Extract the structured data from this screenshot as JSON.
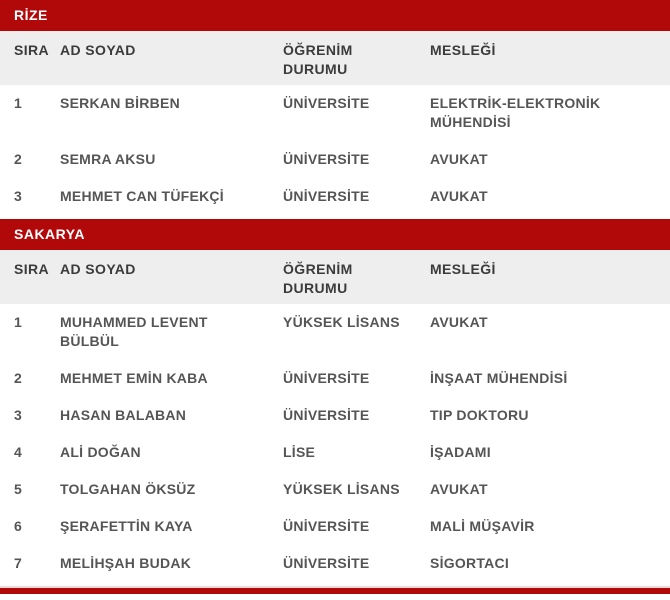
{
  "colors": {
    "accent_red": "#b10909",
    "header_row_bg": "#eeeeee",
    "header_text": "#3b3b3b",
    "row_text": "#555555",
    "bar_text": "#ffffff"
  },
  "columns": [
    "SIRA",
    "AD SOYAD",
    "ÖĞRENİM DURUMU",
    "MESLEĞİ"
  ],
  "sections": [
    {
      "title": "RİZE",
      "rows": [
        {
          "sira": "1",
          "ad_soyad": "SERKAN BİRBEN",
          "ogrenim": "ÜNİVERSİTE",
          "meslek": "ELEKTRİK-ELEKTRONİK MÜHENDİSİ"
        },
        {
          "sira": "2",
          "ad_soyad": "SEMRA AKSU",
          "ogrenim": "ÜNİVERSİTE",
          "meslek": "AVUKAT"
        },
        {
          "sira": "3",
          "ad_soyad": "MEHMET CAN TÜFEKÇİ",
          "ogrenim": "ÜNİVERSİTE",
          "meslek": "AVUKAT"
        }
      ]
    },
    {
      "title": "SAKARYA",
      "rows": [
        {
          "sira": "1",
          "ad_soyad": "MUHAMMED LEVENT BÜLBÜL",
          "ogrenim": "YÜKSEK LİSANS",
          "meslek": "AVUKAT"
        },
        {
          "sira": "2",
          "ad_soyad": "MEHMET EMİN KABA",
          "ogrenim": "ÜNİVERSİTE",
          "meslek": "İNŞAAT MÜHENDİSİ"
        },
        {
          "sira": "3",
          "ad_soyad": "HASAN BALABAN",
          "ogrenim": "ÜNİVERSİTE",
          "meslek": "TIP DOKTORU"
        },
        {
          "sira": "4",
          "ad_soyad": "ALİ DOĞAN",
          "ogrenim": "LİSE",
          "meslek": "İŞADAMI"
        },
        {
          "sira": "5",
          "ad_soyad": "TOLGAHAN ÖKSÜZ",
          "ogrenim": "YÜKSEK LİSANS",
          "meslek": "AVUKAT"
        },
        {
          "sira": "6",
          "ad_soyad": "ŞERAFETTİN KAYA",
          "ogrenim": "ÜNİVERSİTE",
          "meslek": "MALİ MÜŞAVİR"
        },
        {
          "sira": "7",
          "ad_soyad": "MELİHŞAH BUDAK",
          "ogrenim": "ÜNİVERSİTE",
          "meslek": "SİGORTACI"
        }
      ]
    }
  ],
  "next_section_bar_truncated": true
}
